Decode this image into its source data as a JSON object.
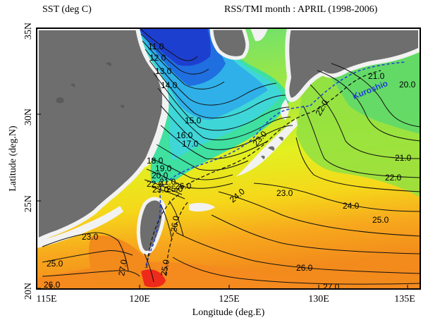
{
  "header": {
    "left": "SST (deg C)",
    "right": "RSS/TMI   month : APRIL (1998-2006)"
  },
  "axes": {
    "ylabel": "Latitude (deg.N)",
    "xlabel": "Longitude (deg.E)",
    "yticks": [
      "35N",
      "30N",
      "25N",
      "20N"
    ],
    "xticks": [
      "115E",
      "120E",
      "125E",
      "130E",
      "135E"
    ]
  },
  "current_label": "Kuroshio",
  "contour_labels": [
    {
      "id": "c11",
      "text": "11.0"
    },
    {
      "id": "c12",
      "text": "12.0"
    },
    {
      "id": "c13",
      "text": "13.0"
    },
    {
      "id": "c14",
      "text": "14.0"
    },
    {
      "id": "c15",
      "text": "15.0"
    },
    {
      "id": "c16",
      "text": "16.0"
    },
    {
      "id": "c17",
      "text": "17.0"
    },
    {
      "id": "c18",
      "text": "18.0"
    },
    {
      "id": "c19",
      "text": "19.0"
    },
    {
      "id": "c20a",
      "text": "20.0"
    },
    {
      "id": "c21a",
      "text": "21.0"
    },
    {
      "id": "c22a",
      "text": "22.0"
    },
    {
      "id": "c23a",
      "text": "23.0"
    },
    {
      "id": "c25a",
      "text": "25.0"
    },
    {
      "id": "c26a",
      "text": "26.0"
    },
    {
      "id": "c21n",
      "text": "21.0"
    },
    {
      "id": "c20n",
      "text": "20.0"
    },
    {
      "id": "c22n",
      "text": "22.0"
    },
    {
      "id": "c21e",
      "text": "21.0"
    },
    {
      "id": "c22e",
      "text": "22.0"
    },
    {
      "id": "c23m",
      "text": "23.0"
    },
    {
      "id": "c23i",
      "text": "23.0"
    },
    {
      "id": "c24m",
      "text": "24.0"
    },
    {
      "id": "c24e",
      "text": "24.0"
    },
    {
      "id": "c25m",
      "text": "25.0"
    },
    {
      "id": "c23w",
      "text": "23.0"
    },
    {
      "id": "c25w",
      "text": "25.0"
    },
    {
      "id": "c26w",
      "text": "26.0"
    },
    {
      "id": "c27w",
      "text": "27.0"
    },
    {
      "id": "c26m",
      "text": "26.0"
    },
    {
      "id": "c27s",
      "text": "27.0"
    },
    {
      "id": "c26t",
      "text": "26.0"
    },
    {
      "id": "c25t",
      "text": "25.0"
    }
  ],
  "colors": {
    "land": "#6e6e6e",
    "coast": "#f2f2f2",
    "contour": "#111111",
    "kuroshio": "#1f3fd8"
  }
}
